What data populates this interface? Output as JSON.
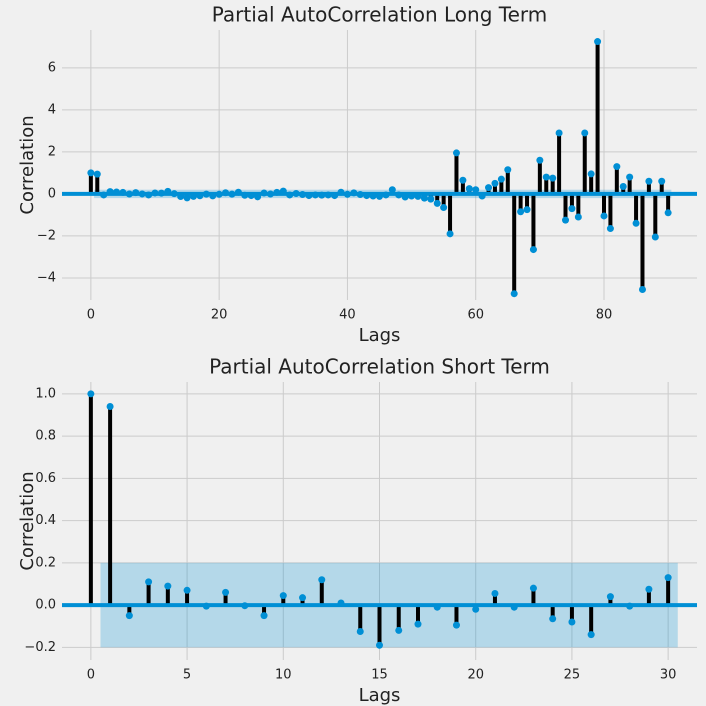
{
  "chart_data": [
    {
      "type": "stem",
      "title": "Partial AutoCorrelation Long Term",
      "xlabel": "Lags",
      "ylabel": "Correlation",
      "x": [
        0,
        1,
        2,
        3,
        4,
        5,
        6,
        7,
        8,
        9,
        10,
        11,
        12,
        13,
        14,
        15,
        16,
        17,
        18,
        19,
        20,
        21,
        22,
        23,
        24,
        25,
        26,
        27,
        28,
        29,
        30,
        31,
        32,
        33,
        34,
        35,
        36,
        37,
        38,
        39,
        40,
        41,
        42,
        43,
        44,
        45,
        46,
        47,
        48,
        49,
        50,
        51,
        52,
        53,
        54,
        55,
        56,
        57,
        58,
        59,
        60,
        61,
        62,
        63,
        64,
        65,
        66,
        67,
        68,
        69,
        70,
        71,
        72,
        73,
        74,
        75,
        76,
        77,
        78,
        79,
        80,
        81,
        82,
        83,
        84,
        85,
        86,
        87,
        88,
        89,
        90
      ],
      "values": [
        1.0,
        0.94,
        -0.05,
        0.11,
        0.09,
        0.07,
        -0.005,
        0.06,
        -0.003,
        -0.05,
        0.045,
        0.035,
        0.12,
        0.01,
        -0.125,
        -0.19,
        -0.12,
        -0.09,
        -0.01,
        -0.095,
        -0.02,
        0.055,
        -0.01,
        0.08,
        -0.065,
        -0.08,
        -0.14,
        0.04,
        -0.005,
        0.075,
        0.13,
        -0.05,
        0.02,
        -0.03,
        -0.08,
        -0.05,
        -0.06,
        -0.05,
        -0.08,
        0.08,
        -0.02,
        0.05,
        -0.03,
        -0.08,
        -0.1,
        -0.12,
        -0.05,
        0.2,
        -0.05,
        -0.15,
        -0.1,
        -0.12,
        -0.2,
        -0.25,
        -0.45,
        -0.65,
        -1.9,
        1.95,
        0.65,
        0.25,
        0.2,
        -0.1,
        0.3,
        0.5,
        0.7,
        1.15,
        -4.75,
        -0.85,
        -0.75,
        -2.65,
        1.6,
        0.8,
        0.75,
        2.9,
        -1.25,
        -0.7,
        -1.1,
        2.9,
        0.95,
        7.25,
        -1.05,
        -1.65,
        1.3,
        0.35,
        0.8,
        -1.4,
        -4.55,
        0.6,
        -2.05,
        0.6,
        -0.9
      ],
      "color": "#008fd5",
      "confint": 0.2,
      "xlim": [
        -4.5,
        94.5
      ],
      "ylim": [
        -5.05,
        7.8
      ],
      "xticks": [
        0,
        20,
        40,
        60,
        80
      ],
      "yticks": [
        {
          "value": -4,
          "label": "−4"
        },
        {
          "value": -2,
          "label": "−2"
        },
        0,
        2,
        4,
        6
      ],
      "grid": true
    },
    {
      "type": "stem",
      "title": "Partial AutoCorrelation Short Term",
      "xlabel": "Lags",
      "ylabel": "Correlation",
      "x": [
        0,
        1,
        2,
        3,
        4,
        5,
        6,
        7,
        8,
        9,
        10,
        11,
        12,
        13,
        14,
        15,
        16,
        17,
        18,
        19,
        20,
        21,
        22,
        23,
        24,
        25,
        26,
        27,
        28,
        29,
        30
      ],
      "values": [
        1.0,
        0.94,
        -0.05,
        0.11,
        0.09,
        0.07,
        -0.005,
        0.06,
        -0.003,
        -0.05,
        0.045,
        0.035,
        0.12,
        0.01,
        -0.125,
        -0.19,
        -0.12,
        -0.09,
        -0.01,
        -0.095,
        -0.02,
        0.055,
        -0.01,
        0.08,
        -0.065,
        -0.08,
        -0.14,
        0.04,
        -0.005,
        0.075,
        0.13
      ],
      "color": "#008fd5",
      "confint": 0.2,
      "xlim": [
        -1.5,
        31.5
      ],
      "ylim": [
        -0.26,
        1.056
      ],
      "xticks": [
        0,
        5,
        10,
        15,
        20,
        25,
        30
      ],
      "yticks": [
        {
          "value": -0.2,
          "label": "−0.2"
        },
        {
          "value": 0,
          "label": "0.0"
        },
        {
          "value": 0.2,
          "label": "0.2"
        },
        {
          "value": 0.4,
          "label": "0.4"
        },
        {
          "value": 0.6,
          "label": "0.6"
        },
        {
          "value": 0.8,
          "label": "0.8"
        },
        {
          "value": 1.0,
          "label": "1.0"
        }
      ],
      "grid": true
    }
  ]
}
